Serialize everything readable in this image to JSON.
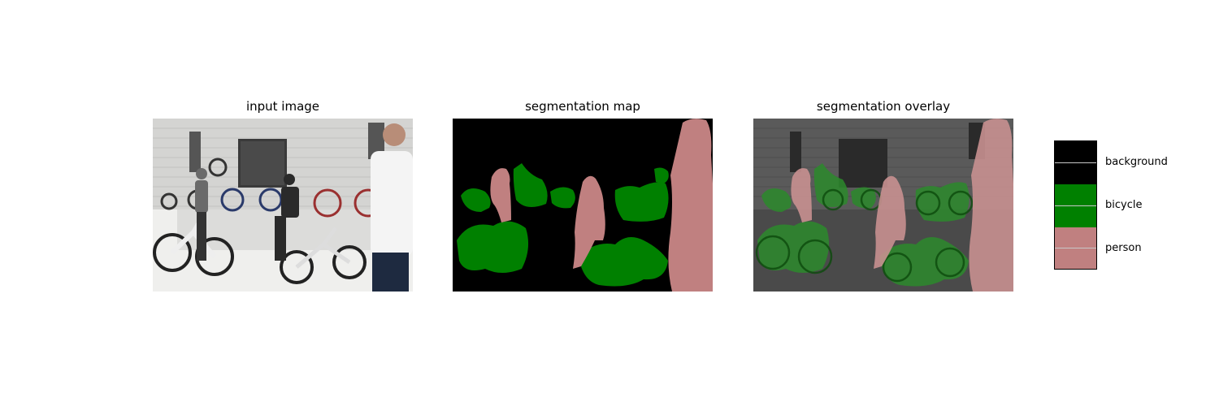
{
  "panels": {
    "input": {
      "title": "input image"
    },
    "map": {
      "title": "segmentation map"
    },
    "overlay": {
      "title": "segmentation overlay"
    }
  },
  "legend": {
    "items": [
      {
        "label": "background",
        "color": "#000000"
      },
      {
        "label": "bicycle",
        "color": "#008000"
      },
      {
        "label": "person",
        "color": "#c08080"
      }
    ]
  }
}
